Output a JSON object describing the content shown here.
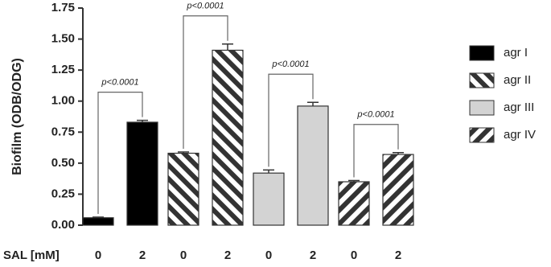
{
  "chart_data": {
    "type": "bar",
    "y_label": "Biofilm (ODB/ODG)",
    "x_label": "SAL [mM]",
    "categories": [
      "0",
      "2",
      "0",
      "2",
      "0",
      "2",
      "0",
      "2"
    ],
    "series": [
      {
        "name": "agr I",
        "color": "#000000",
        "hatch": null,
        "values": [
          0.06,
          0.83,
          null,
          null,
          null,
          null,
          null,
          null
        ],
        "errors": [
          0.005,
          0.015,
          null,
          null,
          null,
          null,
          null,
          null
        ]
      },
      {
        "name": "agr II",
        "color": "#333333",
        "hatch": "backslash",
        "values": [
          null,
          null,
          0.58,
          1.41,
          null,
          null,
          null,
          null
        ],
        "errors": [
          null,
          null,
          0.01,
          0.05,
          null,
          null,
          null,
          null
        ]
      },
      {
        "name": "agr III",
        "color": "#d3d3d3",
        "hatch": null,
        "values": [
          null,
          null,
          null,
          null,
          0.42,
          0.96,
          null,
          null
        ],
        "errors": [
          null,
          null,
          null,
          null,
          0.025,
          0.03,
          null,
          null
        ]
      },
      {
        "name": "agr IV",
        "color": "#333333",
        "hatch": "slash",
        "values": [
          null,
          null,
          null,
          null,
          null,
          null,
          0.35,
          0.57
        ],
        "errors": [
          null,
          null,
          null,
          null,
          null,
          null,
          0.01,
          0.015
        ]
      }
    ],
    "annotations": [
      "p<0.0001",
      "p<0.0001",
      "p<0.0001",
      "p<0.0001"
    ],
    "ylim": [
      0,
      1.75
    ],
    "yticks": [
      {
        "value": 0,
        "label": "0.00"
      },
      {
        "value": 0.25,
        "label": "0.25"
      },
      {
        "value": 0.5,
        "label": "0.50"
      },
      {
        "value": 0.75,
        "label": "0.75"
      },
      {
        "value": 1,
        "label": "1.00"
      },
      {
        "value": 1.25,
        "label": "1.25"
      },
      {
        "value": 1.5,
        "label": "1.50"
      },
      {
        "value": 1.75,
        "label": "1.75"
      }
    ]
  }
}
